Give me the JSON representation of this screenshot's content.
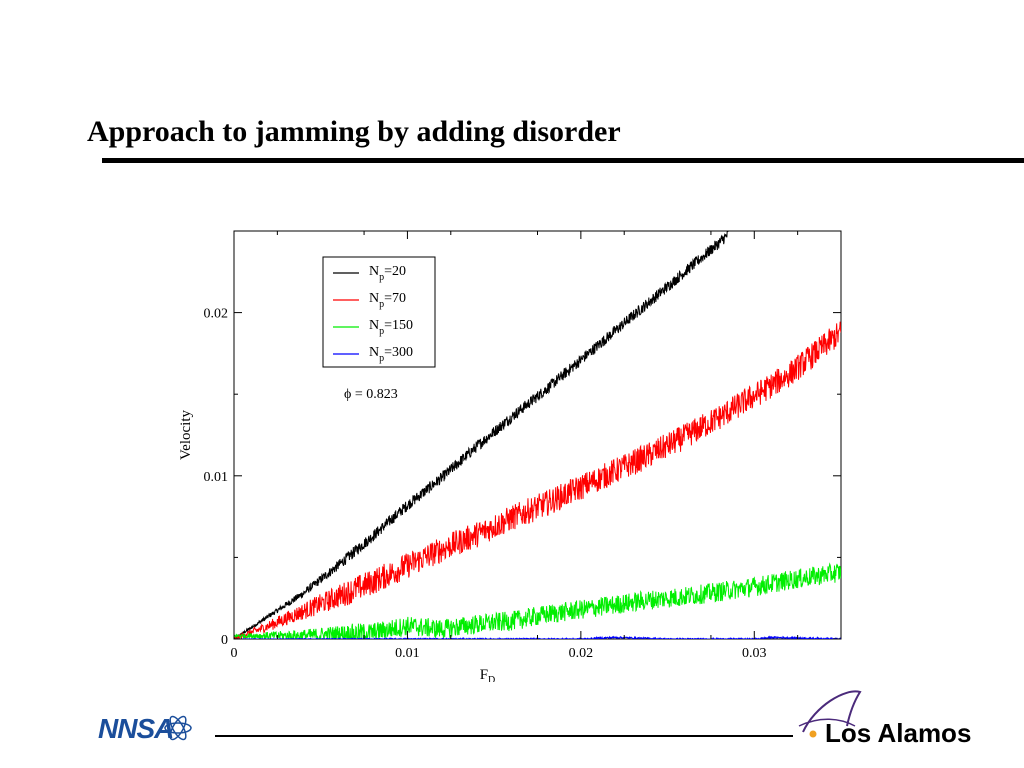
{
  "slide": {
    "title": "Approach to jamming by adding disorder"
  },
  "footer": {
    "left_logo_text": "NNSA",
    "right_logo_text": "Los Alamos"
  },
  "colors": {
    "background": "#ffffff",
    "series_np20": "#000000",
    "series_np70": "#ff0000",
    "series_np150": "#00ee00",
    "series_np300": "#0000ff",
    "nnsa_blue": "#1b4e9b",
    "la_purple": "#4b2a7b"
  },
  "chart_data": {
    "type": "line",
    "xlabel": "F",
    "xlabel_sub": "D",
    "ylabel": "Velocity",
    "xlim": [
      0,
      0.035
    ],
    "ylim": [
      0,
      0.025
    ],
    "xticks": [
      {
        "value": 0,
        "label": "0"
      },
      {
        "value": 0.01,
        "label": "0.01"
      },
      {
        "value": 0.02,
        "label": "0.02"
      },
      {
        "value": 0.03,
        "label": "0.03"
      }
    ],
    "yticks": [
      {
        "value": 0,
        "label": "0"
      },
      {
        "value": 0.01,
        "label": "0.01"
      },
      {
        "value": 0.02,
        "label": "0.02"
      }
    ],
    "grid": false,
    "legend_position": "top-left",
    "annotation": "ϕ = 0.823",
    "series": [
      {
        "label_main": "N",
        "label_sub": "p",
        "label_tail": "=20",
        "color": "#000000",
        "x": [
          0,
          0.002,
          0.004,
          0.006,
          0.008,
          0.01,
          0.012,
          0.014,
          0.016,
          0.018,
          0.02,
          0.022,
          0.024,
          0.026,
          0.028,
          0.0285
        ],
        "y": [
          0,
          0.0014,
          0.0028,
          0.0045,
          0.0063,
          0.0082,
          0.0099,
          0.0118,
          0.0136,
          0.0153,
          0.0171,
          0.0189,
          0.0207,
          0.0225,
          0.0243,
          0.0248
        ],
        "noise": 0.00035
      },
      {
        "label_main": "N",
        "label_sub": "p",
        "label_tail": "=70",
        "color": "#ff0000",
        "x": [
          0,
          0.002,
          0.004,
          0.006,
          0.008,
          0.01,
          0.012,
          0.014,
          0.016,
          0.018,
          0.02,
          0.022,
          0.024,
          0.026,
          0.028,
          0.03,
          0.032,
          0.035
        ],
        "y": [
          0,
          0.0008,
          0.0017,
          0.0026,
          0.0035,
          0.0045,
          0.0055,
          0.0064,
          0.0074,
          0.0083,
          0.0093,
          0.0103,
          0.0113,
          0.0124,
          0.0136,
          0.0149,
          0.0162,
          0.0188
        ],
        "noise": 0.0008
      },
      {
        "label_main": "N",
        "label_sub": "p",
        "label_tail": "=150",
        "color": "#00ee00",
        "x": [
          0,
          0.002,
          0.004,
          0.006,
          0.008,
          0.01,
          0.012,
          0.014,
          0.016,
          0.018,
          0.02,
          0.022,
          0.024,
          0.026,
          0.028,
          0.03,
          0.032,
          0.035
        ],
        "y": [
          0.0002,
          0.0002,
          0.0002,
          0.0003,
          0.0004,
          0.0008,
          0.0006,
          0.0009,
          0.0011,
          0.0015,
          0.0018,
          0.0021,
          0.0024,
          0.0026,
          0.0029,
          0.0032,
          0.0036,
          0.0041
        ],
        "noise": 0.0006
      },
      {
        "label_main": "N",
        "label_sub": "p",
        "label_tail": "=300",
        "color": "#0000ff",
        "x": [
          0,
          0.005,
          0.01,
          0.015,
          0.02,
          0.022,
          0.025,
          0.03,
          0.031,
          0.035
        ],
        "y": [
          0,
          0,
          0,
          0,
          0,
          0.0001,
          0,
          0,
          0.0001,
          0
        ],
        "noise": 5e-05
      }
    ]
  }
}
